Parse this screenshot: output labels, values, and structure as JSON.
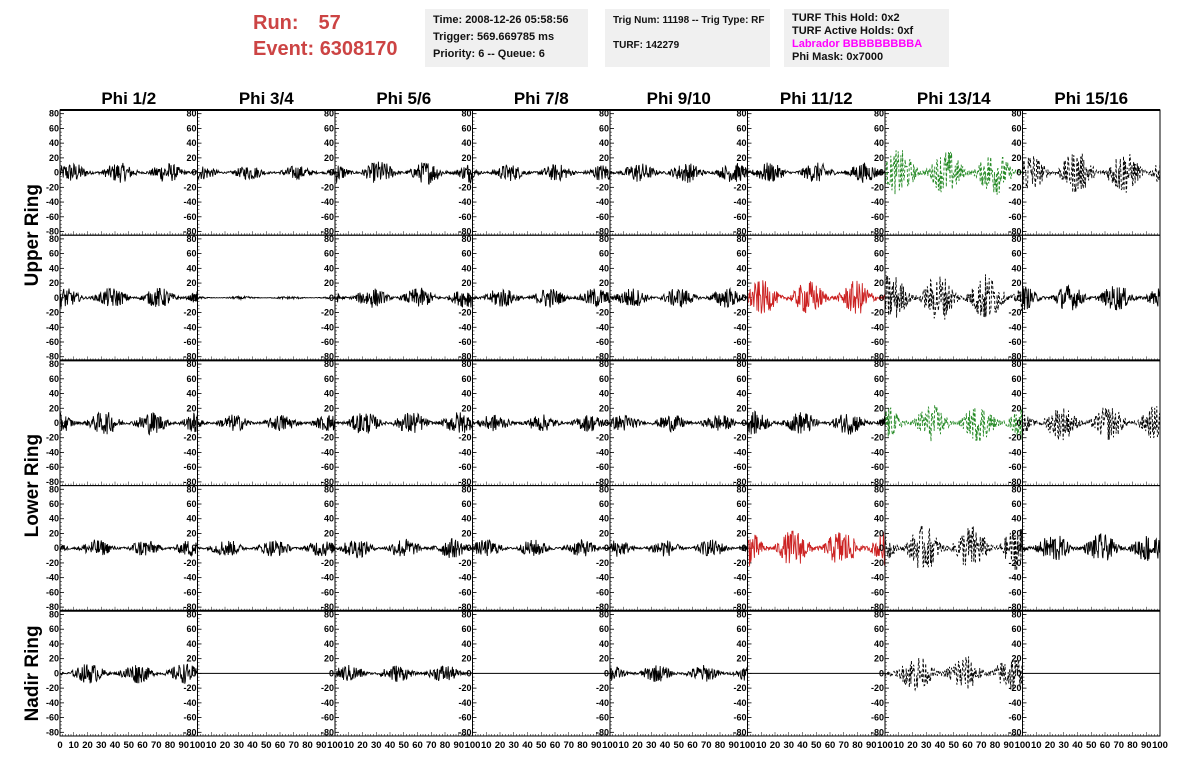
{
  "header": {
    "run_label": "Run:",
    "run_value": "57",
    "event_label": "Event:",
    "event_value": "6308170"
  },
  "info_time": {
    "time": "Time: 2008-12-26 05:58:56",
    "trigger": "Trigger: 569.669785 ms",
    "priority": "Priority: 6 -- Queue: 6"
  },
  "info_trig": {
    "trig": "Trig Num: 11198 -- Trig Type: RF",
    "turf": "TURF: 142279"
  },
  "info_turf": {
    "hold": "TURF This Hold: 0x2",
    "active": "TURF Active Holds: 0xf",
    "labrador": "Labrador BBBBBBBBBA",
    "mask": "Phi Mask: 0x7000"
  },
  "colors": {
    "run_text": "#cc4444",
    "labrador_text": "#ff00ff",
    "trace_default": "#000000",
    "trace_red": "#cc2222",
    "trace_green": "#228822"
  },
  "chart_data": {
    "type": "line",
    "columns": [
      "Phi 1/2",
      "Phi 3/4",
      "Phi 5/6",
      "Phi 7/8",
      "Phi 9/10",
      "Phi 11/12",
      "Phi 13/14",
      "Phi 15/16"
    ],
    "rings": [
      "Upper Ring",
      "Lower Ring",
      "Nadir Ring"
    ],
    "xlim": [
      0,
      100
    ],
    "ylim": [
      -85,
      85
    ],
    "x_ticks": [
      0,
      10,
      20,
      30,
      40,
      50,
      60,
      70,
      80,
      90,
      100
    ],
    "y_ticks": [
      -80,
      -60,
      -40,
      -20,
      0,
      20,
      40,
      60,
      80
    ],
    "rows": [
      {
        "ring": "Upper Ring",
        "style": [
          "solid",
          "solid",
          "solid",
          "solid",
          "solid",
          "solid",
          "dash",
          "dash"
        ],
        "color": [
          "black",
          "black",
          "black",
          "black",
          "black",
          "black",
          "green",
          "black"
        ],
        "amplitude": [
          14,
          10,
          16,
          12,
          14,
          14,
          32,
          30
        ]
      },
      {
        "ring": "Upper Ring",
        "style": [
          "solid",
          "solid",
          "solid",
          "solid",
          "solid",
          "solid",
          "dash",
          "solid"
        ],
        "color": [
          "black",
          "black",
          "black",
          "black",
          "black",
          "red",
          "black",
          "black"
        ],
        "amplitude": [
          14,
          2,
          14,
          14,
          14,
          24,
          34,
          18
        ]
      },
      {
        "ring": "Lower Ring",
        "style": [
          "solid",
          "solid",
          "solid",
          "solid",
          "solid",
          "solid",
          "dash",
          "dash"
        ],
        "color": [
          "black",
          "black",
          "black",
          "black",
          "black",
          "black",
          "green",
          "black"
        ],
        "amplitude": [
          16,
          12,
          16,
          12,
          12,
          16,
          26,
          24
        ]
      },
      {
        "ring": "Lower Ring",
        "style": [
          "solid",
          "solid",
          "solid",
          "solid",
          "solid",
          "solid",
          "dash",
          "solid"
        ],
        "color": [
          "black",
          "black",
          "black",
          "black",
          "black",
          "red",
          "black",
          "black"
        ],
        "amplitude": [
          12,
          12,
          14,
          12,
          12,
          26,
          32,
          20
        ]
      },
      {
        "ring": "Nadir Ring",
        "style": [
          "solid",
          "flat",
          "solid",
          "flat",
          "solid",
          "flat",
          "dash",
          "flat"
        ],
        "color": [
          "black",
          "black",
          "black",
          "black",
          "black",
          "black",
          "black",
          "black"
        ],
        "amplitude": [
          14,
          0,
          12,
          0,
          12,
          0,
          26,
          0
        ]
      }
    ]
  }
}
